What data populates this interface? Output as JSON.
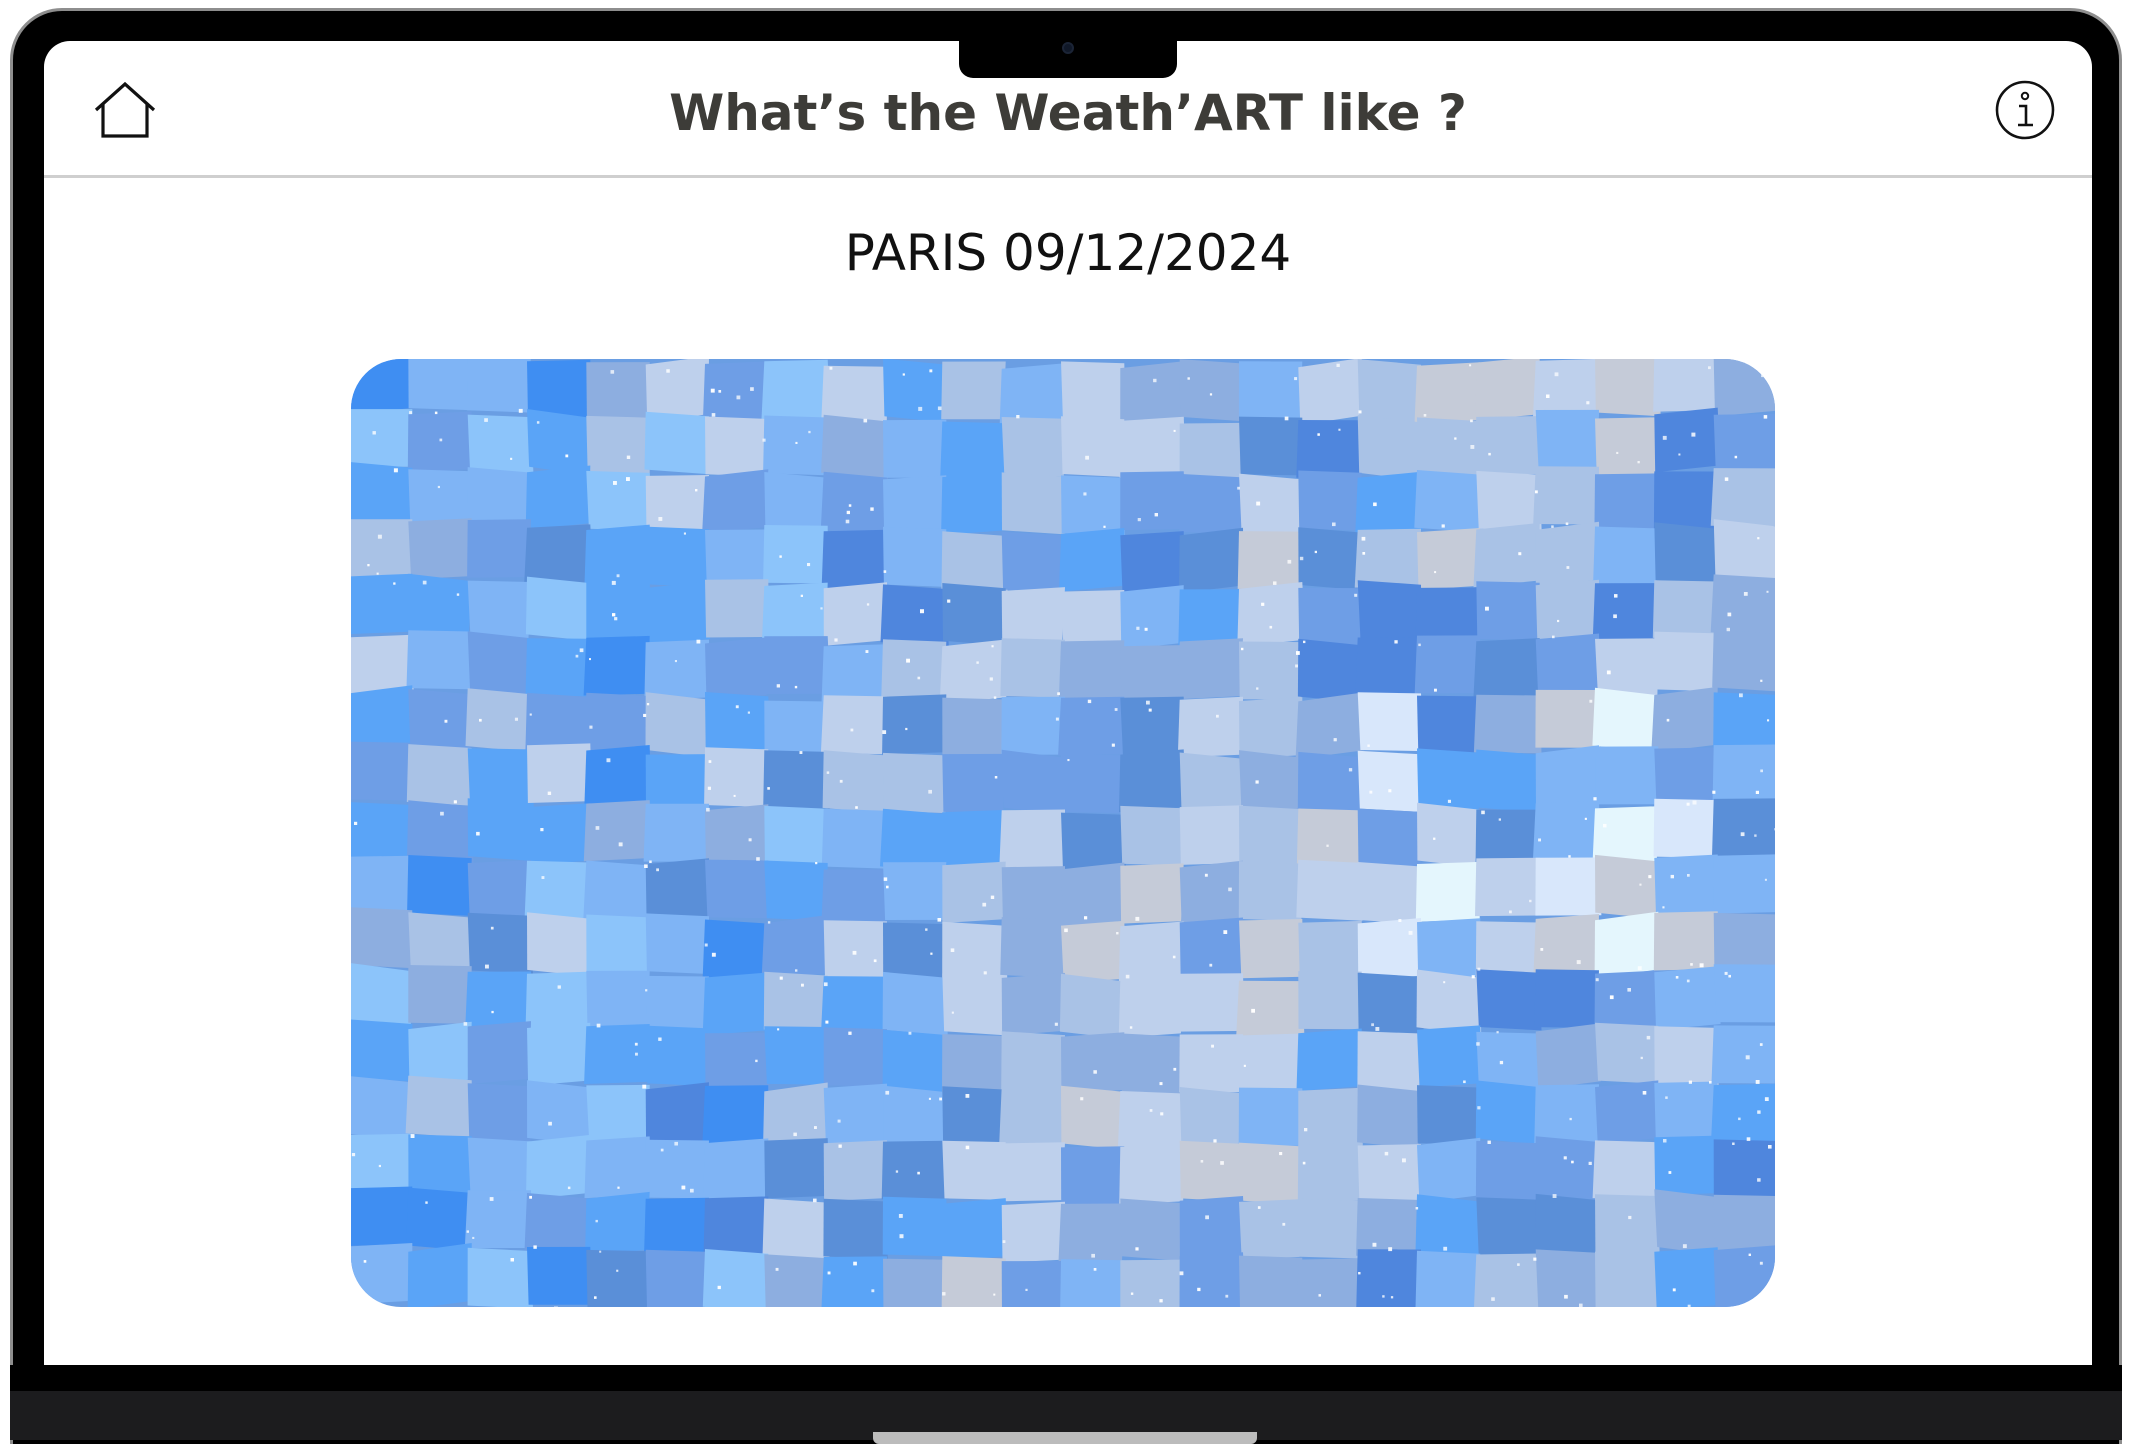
{
  "header": {
    "title": "What’s the Weath’ART like ?",
    "home_icon": "home-icon",
    "info_icon": "info-icon"
  },
  "main": {
    "location_date": "PARIS 09/12/2024",
    "artwork_palette": [
      "#5aa4f7",
      "#8cc4fa",
      "#3f8ef2",
      "#6e9ee6",
      "#4f86dd",
      "#8daee0",
      "#a9c2e6",
      "#c5cbd8",
      "#d8e7fb",
      "#e4f6fd",
      "#5a8fd8",
      "#7fb4f5",
      "#bed0ec"
    ],
    "artwork_icon": "weather-art-image"
  },
  "colors": {
    "title_text": "#3d3c38",
    "header_divider": "#cfcfcf",
    "bezel": "#000000"
  }
}
